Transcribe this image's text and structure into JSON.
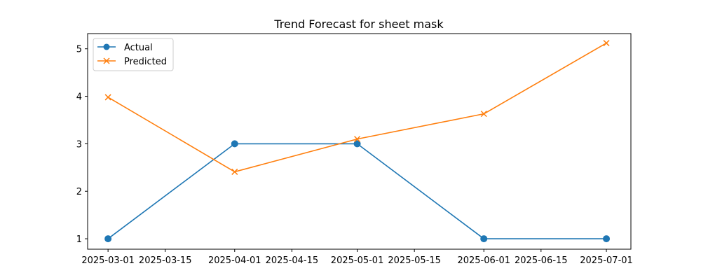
{
  "chart_data": {
    "type": "line",
    "title": "Trend Forecast for sheet mask",
    "xlabel": "",
    "ylabel": "",
    "x_type": "date",
    "xlim": [
      "2025-02-24",
      "2025-07-07"
    ],
    "ylim": [
      0.78,
      5.32
    ],
    "x_ticks": [
      "2025-03-01",
      "2025-03-15",
      "2025-04-01",
      "2025-04-15",
      "2025-05-01",
      "2025-05-15",
      "2025-06-01",
      "2025-06-15",
      "2025-07-01"
    ],
    "y_ticks": [
      1,
      2,
      3,
      4,
      5
    ],
    "grid": false,
    "legend_position": "upper-left",
    "series": [
      {
        "name": "Actual",
        "color": "#1f77b4",
        "marker": "circle",
        "x": [
          "2025-03-01",
          "2025-04-01",
          "2025-05-01",
          "2025-06-01",
          "2025-07-01"
        ],
        "values": [
          1,
          3,
          3,
          1,
          1
        ]
      },
      {
        "name": "Predicted",
        "color": "#ff7f0e",
        "marker": "x",
        "x": [
          "2025-03-01",
          "2025-04-01",
          "2025-05-01",
          "2025-06-01",
          "2025-07-01"
        ],
        "values": [
          3.98,
          2.41,
          3.1,
          3.63,
          5.12
        ]
      }
    ]
  }
}
